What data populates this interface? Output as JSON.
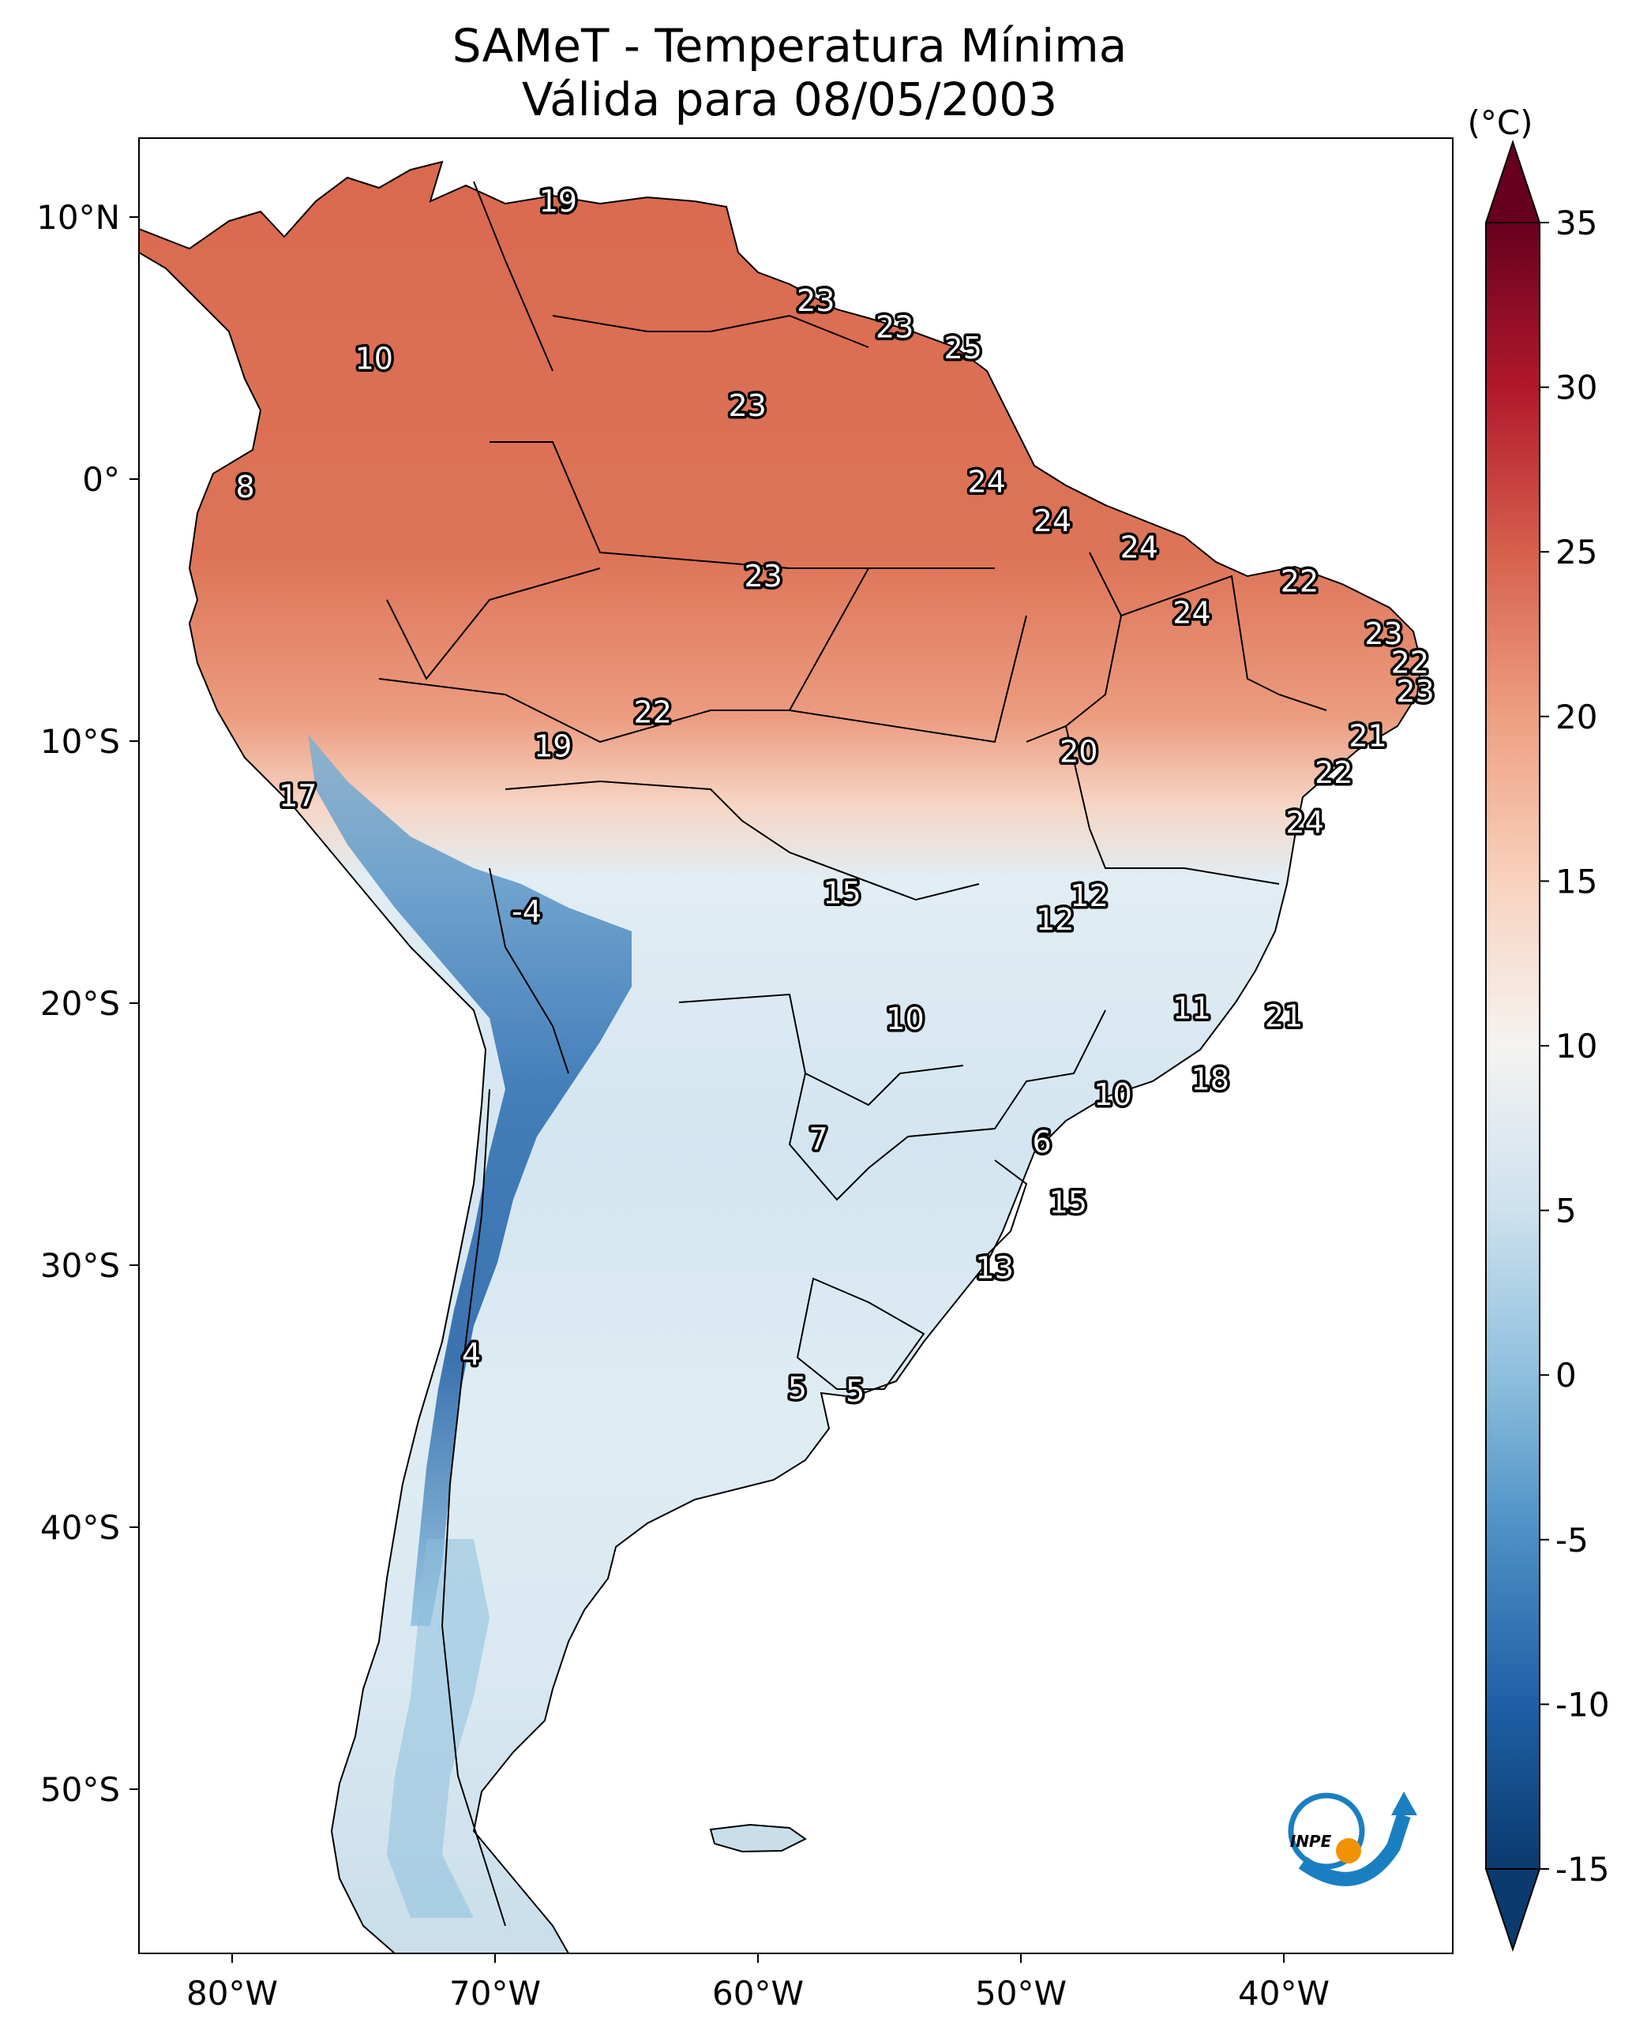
{
  "title": {
    "line1": "SAMeT - Temperatura Mínima",
    "line2": "Válida para 08/05/2003"
  },
  "map": {
    "lon_ticks": [
      "80°W",
      "70°W",
      "60°W",
      "50°W",
      "40°W"
    ],
    "lat_ticks": [
      "10°N",
      "0°",
      "10°S",
      "20°S",
      "30°S",
      "40°S",
      "50°S"
    ],
    "station_labels": [
      {
        "text": "19",
        "lon": -67.6,
        "lat": 10.6
      },
      {
        "text": "23",
        "lon": -57.8,
        "lat": 6.8
      },
      {
        "text": "23",
        "lon": -54.8,
        "lat": 5.8
      },
      {
        "text": "25",
        "lon": -52.2,
        "lat": 5.0
      },
      {
        "text": "10",
        "lon": -74.6,
        "lat": 4.6
      },
      {
        "text": "23",
        "lon": -60.4,
        "lat": 2.8
      },
      {
        "text": "8",
        "lon": -79.5,
        "lat": -0.3
      },
      {
        "text": "24",
        "lon": -51.3,
        "lat": -0.1
      },
      {
        "text": "24",
        "lon": -48.8,
        "lat": -1.6
      },
      {
        "text": "24",
        "lon": -45.5,
        "lat": -2.6
      },
      {
        "text": "22",
        "lon": -39.4,
        "lat": -3.9
      },
      {
        "text": "23",
        "lon": -59.8,
        "lat": -3.7
      },
      {
        "text": "24",
        "lon": -43.5,
        "lat": -5.1
      },
      {
        "text": "23",
        "lon": -36.2,
        "lat": -5.9
      },
      {
        "text": "22",
        "lon": -35.2,
        "lat": -7.0
      },
      {
        "text": "23",
        "lon": -35.0,
        "lat": -8.1
      },
      {
        "text": "21",
        "lon": -36.8,
        "lat": -9.8
      },
      {
        "text": "22",
        "lon": -64.0,
        "lat": -8.9
      },
      {
        "text": "19",
        "lon": -67.8,
        "lat": -10.2
      },
      {
        "text": "20",
        "lon": -47.8,
        "lat": -10.4
      },
      {
        "text": "22",
        "lon": -38.1,
        "lat": -11.2
      },
      {
        "text": "17",
        "lon": -77.5,
        "lat": -12.1
      },
      {
        "text": "24",
        "lon": -39.2,
        "lat": -13.1
      },
      {
        "text": "15",
        "lon": -56.8,
        "lat": -15.8
      },
      {
        "text": "12",
        "lon": -47.4,
        "lat": -15.9
      },
      {
        "text": "12",
        "lon": -48.7,
        "lat": -16.8
      },
      {
        "text": "-4",
        "lon": -68.8,
        "lat": -16.5
      },
      {
        "text": "11",
        "lon": -43.5,
        "lat": -20.2
      },
      {
        "text": "21",
        "lon": -40.0,
        "lat": -20.5
      },
      {
        "text": "10",
        "lon": -54.4,
        "lat": -20.6
      },
      {
        "text": "18",
        "lon": -42.8,
        "lat": -22.9
      },
      {
        "text": "10",
        "lon": -46.5,
        "lat": -23.5
      },
      {
        "text": "7",
        "lon": -57.7,
        "lat": -25.2
      },
      {
        "text": "6",
        "lon": -49.2,
        "lat": -25.3
      },
      {
        "text": "15",
        "lon": -48.2,
        "lat": -27.6
      },
      {
        "text": "13",
        "lon": -51.0,
        "lat": -30.1
      },
      {
        "text": "4",
        "lon": -70.9,
        "lat": -33.4
      },
      {
        "text": "5",
        "lon": -58.5,
        "lat": -34.7
      },
      {
        "text": "5",
        "lon": -56.3,
        "lat": -34.8
      }
    ]
  },
  "colorbar": {
    "unit_label": "(°C)",
    "ticks": [
      "35",
      "30",
      "25",
      "20",
      "15",
      "10",
      "5",
      "0",
      "-5",
      "-10",
      "-15"
    ],
    "min": -15,
    "max": 35,
    "extend": "both",
    "cmap": "RdBu_r",
    "colors": {
      "-15": "#0b3a6e",
      "-10": "#1f5fa6",
      "-5": "#4a8ec4",
      "0": "#8ebfdd",
      "5": "#cde1ee",
      "10": "#f5f3f1",
      "15": "#f8d2be",
      "20": "#ee9f81",
      "25": "#d6604d",
      "30": "#b2182b",
      "35": "#67001f"
    }
  },
  "logo": {
    "text": "INPE",
    "colors": {
      "blue": "#1a7fc1",
      "orange": "#f29200"
    }
  }
}
